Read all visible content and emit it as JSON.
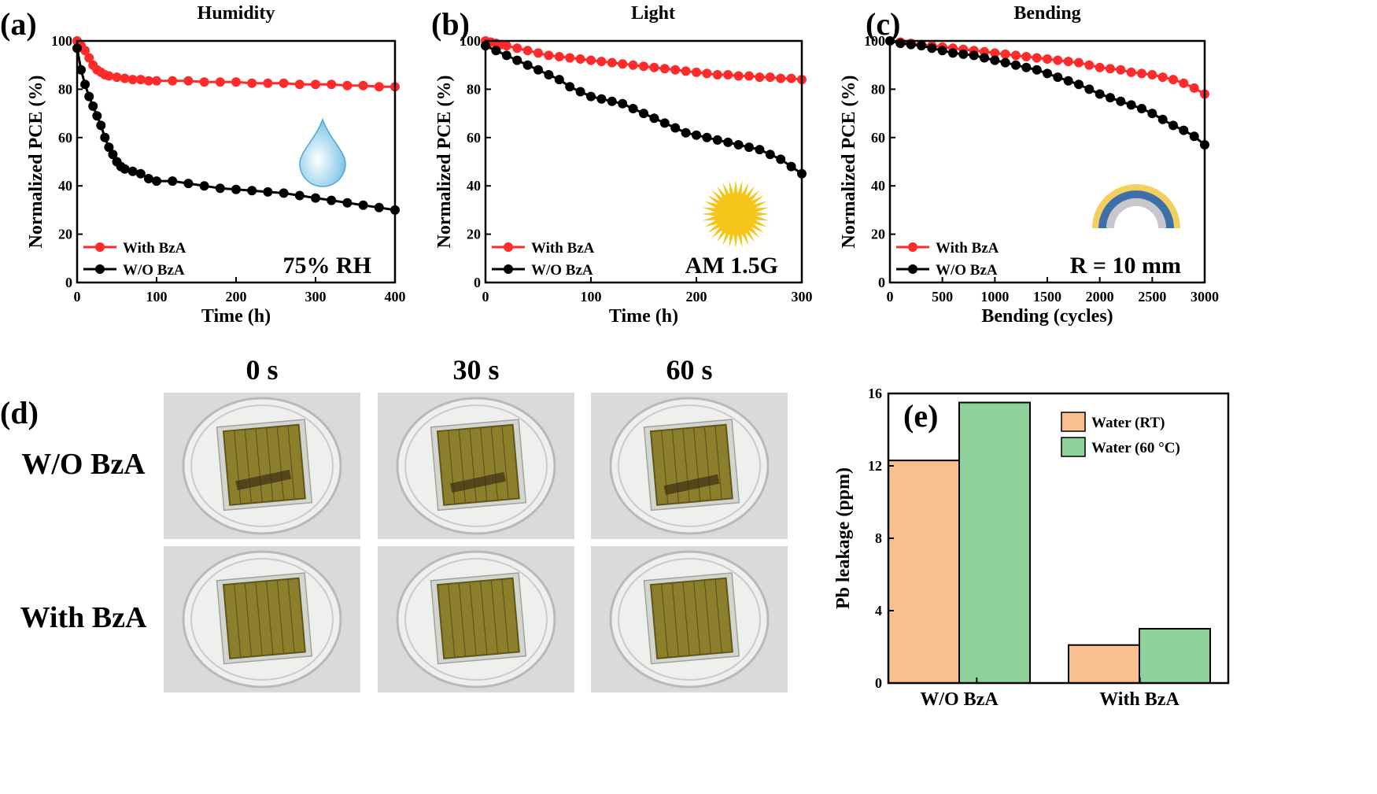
{
  "panels": {
    "a": "(a)",
    "b": "(b)",
    "c": "(c)",
    "d": "(d)",
    "e": "(e)"
  },
  "colors": {
    "with": "#ff2a2a",
    "without": "#000000",
    "bar_rt": "#f7c08e",
    "bar_60": "#8fd19a",
    "drop": "#7cc4e6",
    "sun": "#f5c518",
    "arc_outer": "#f3cf5d",
    "arc_mid": "#3f6fa8",
    "arc_inner": "#c8c8cc"
  },
  "chart_data": [
    {
      "id": "a",
      "type": "line",
      "title": "Humidity",
      "xlabel": "Time (h)",
      "ylabel": "Normalized PCE (%)",
      "xlim": [
        0,
        400
      ],
      "ylim": [
        0,
        100
      ],
      "xticks": [
        0,
        100,
        200,
        300,
        400
      ],
      "yticks": [
        0,
        20,
        40,
        60,
        80,
        100
      ],
      "legend_position": "lower-left",
      "annotation": "75% RH",
      "icon": "water-drop-icon",
      "series": [
        {
          "name": "With BzA",
          "color": "#ff2a2a",
          "x": [
            0,
            5,
            10,
            15,
            20,
            25,
            30,
            35,
            40,
            50,
            60,
            70,
            80,
            90,
            100,
            120,
            140,
            160,
            180,
            200,
            220,
            240,
            260,
            280,
            300,
            320,
            340,
            360,
            380,
            400
          ],
          "y": [
            100,
            98,
            96,
            93,
            90,
            88,
            87,
            86,
            85.5,
            85,
            84.5,
            84,
            84,
            83.5,
            83.5,
            83.5,
            83.5,
            83,
            83,
            83,
            82.5,
            82.5,
            82.5,
            82,
            82,
            82,
            81.5,
            81.5,
            81,
            81
          ]
        },
        {
          "name": "W/O BzA",
          "color": "#000000",
          "x": [
            0,
            5,
            10,
            15,
            20,
            25,
            30,
            35,
            40,
            45,
            50,
            55,
            60,
            70,
            80,
            90,
            100,
            120,
            140,
            160,
            180,
            200,
            220,
            240,
            260,
            280,
            300,
            320,
            340,
            360,
            380,
            400
          ],
          "y": [
            97,
            88,
            82,
            77,
            73,
            69,
            65,
            60,
            56,
            53,
            50,
            48,
            47,
            46,
            45,
            43,
            42,
            42,
            41,
            40,
            39,
            38.5,
            38,
            37.5,
            37,
            36,
            35,
            34,
            33,
            32,
            31,
            30
          ]
        }
      ]
    },
    {
      "id": "b",
      "type": "line",
      "title": "Light",
      "xlabel": "Time (h)",
      "ylabel": "Normalized PCE (%)",
      "xlim": [
        0,
        300
      ],
      "ylim": [
        0,
        100
      ],
      "xticks": [
        0,
        100,
        200,
        300
      ],
      "yticks": [
        0,
        20,
        40,
        60,
        80,
        100
      ],
      "legend_position": "lower-left",
      "annotation": "AM 1.5G",
      "icon": "sun-icon",
      "series": [
        {
          "name": "With BzA",
          "color": "#ff2a2a",
          "x": [
            0,
            5,
            10,
            15,
            20,
            30,
            40,
            50,
            60,
            70,
            80,
            90,
            100,
            110,
            120,
            130,
            140,
            150,
            160,
            170,
            180,
            190,
            200,
            210,
            220,
            230,
            240,
            250,
            260,
            270,
            280,
            290,
            300
          ],
          "y": [
            100,
            99.5,
            99,
            98.5,
            98,
            97,
            96,
            95,
            94,
            93.5,
            93,
            92.5,
            92,
            91.5,
            91,
            90.5,
            90,
            89.5,
            89,
            88.5,
            88,
            87.5,
            87,
            86.5,
            86,
            86,
            85.5,
            85.5,
            85,
            85,
            84.5,
            84.5,
            84
          ]
        },
        {
          "name": "W/O BzA",
          "color": "#000000",
          "x": [
            0,
            10,
            20,
            30,
            40,
            50,
            60,
            70,
            80,
            90,
            100,
            110,
            120,
            130,
            140,
            150,
            160,
            170,
            180,
            190,
            200,
            210,
            220,
            230,
            240,
            250,
            260,
            270,
            280,
            290,
            300
          ],
          "y": [
            98,
            96,
            94,
            92,
            90,
            88,
            86,
            84,
            81,
            79,
            77,
            76,
            75,
            74,
            72,
            70,
            68,
            66,
            64,
            62,
            61,
            60,
            59,
            58,
            57,
            56,
            55,
            53,
            51,
            48,
            45
          ]
        }
      ]
    },
    {
      "id": "c",
      "type": "line",
      "title": "Bending",
      "xlabel": "Bending (cycles)",
      "ylabel": "Normalized PCE (%)",
      "xlim": [
        0,
        3000
      ],
      "ylim": [
        0,
        100
      ],
      "xticks": [
        0,
        500,
        1000,
        1500,
        2000,
        2500,
        3000
      ],
      "yticks": [
        0,
        20,
        40,
        60,
        80,
        100
      ],
      "legend_position": "lower-left",
      "annotation": "R = 10 mm",
      "icon": "bent-substrate-icon",
      "series": [
        {
          "name": "With BzA",
          "color": "#ff2a2a",
          "x": [
            0,
            100,
            200,
            300,
            400,
            500,
            600,
            700,
            800,
            900,
            1000,
            1100,
            1200,
            1300,
            1400,
            1500,
            1600,
            1700,
            1800,
            1900,
            2000,
            2100,
            2200,
            2300,
            2400,
            2500,
            2600,
            2700,
            2800,
            2900,
            3000
          ],
          "y": [
            100,
            99.5,
            99,
            98.5,
            98,
            97.5,
            97,
            96.5,
            96,
            95.5,
            95,
            94.5,
            94,
            93.5,
            93,
            92.5,
            92,
            91.5,
            91,
            90,
            89,
            88.5,
            88,
            87,
            86.5,
            86,
            85,
            84,
            82.5,
            80.5,
            78
          ]
        },
        {
          "name": "W/O BzA",
          "color": "#000000",
          "x": [
            0,
            100,
            200,
            300,
            400,
            500,
            600,
            700,
            800,
            900,
            1000,
            1100,
            1200,
            1300,
            1400,
            1500,
            1600,
            1700,
            1800,
            1900,
            2000,
            2100,
            2200,
            2300,
            2400,
            2500,
            2600,
            2700,
            2800,
            2900,
            3000
          ],
          "y": [
            100,
            99,
            98.5,
            98,
            97,
            96,
            95,
            94.5,
            94,
            93,
            92,
            91,
            90,
            89,
            88,
            86.5,
            85,
            83.5,
            82,
            80,
            78,
            76.5,
            75,
            73.5,
            72,
            70,
            67.5,
            65,
            63,
            60.5,
            57
          ]
        }
      ]
    },
    {
      "id": "e",
      "type": "bar",
      "title": "",
      "xlabel": "",
      "ylabel": "Pb leakage (ppm)",
      "categories": [
        "W/O BzA",
        "With BzA"
      ],
      "ylim": [
        0,
        16
      ],
      "yticks": [
        0,
        4,
        8,
        12,
        16
      ],
      "legend_position": "top-right",
      "series": [
        {
          "name": "Water (RT)",
          "color": "#f7c08e",
          "values": [
            12.3,
            2.1
          ]
        },
        {
          "name": "Water (60 °C)",
          "color": "#8fd19a",
          "values": [
            15.5,
            3.0
          ]
        }
      ]
    }
  ],
  "photos": {
    "columns": [
      "0 s",
      "30 s",
      "60 s"
    ],
    "rows": [
      "W/O BzA",
      "With BzA"
    ],
    "colors": {
      "background": "#dadbd8",
      "dish": "#eef0ee",
      "film": "#8c7f2c",
      "film_dark": "#5f561c"
    }
  }
}
